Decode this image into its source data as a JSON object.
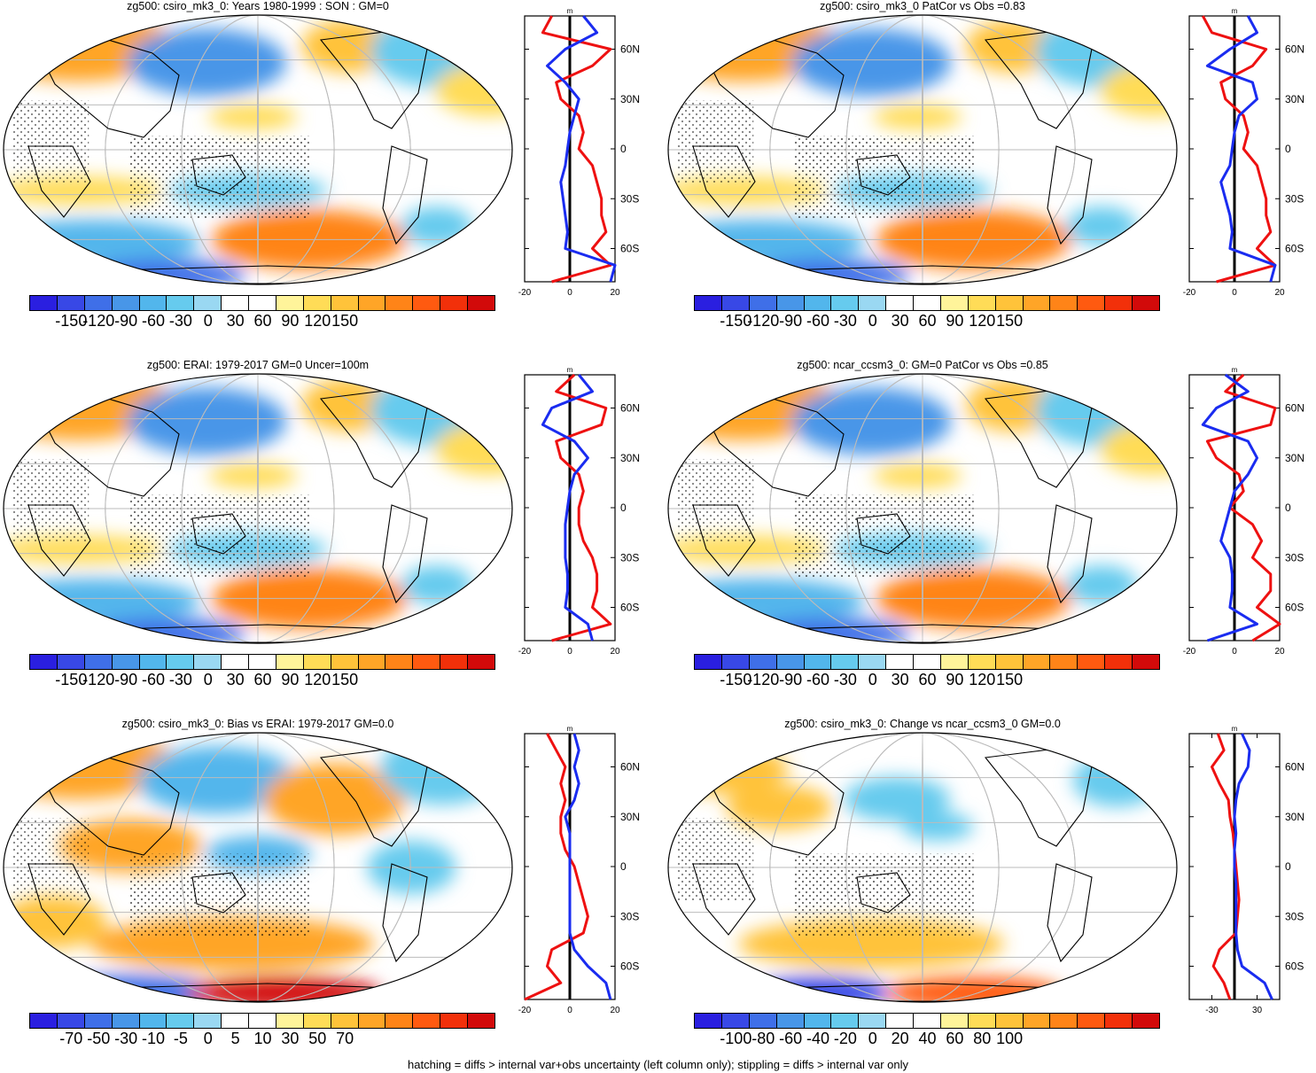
{
  "panels": [
    {
      "title": "zg500: csiro_mk3_0: Years 1980-1999 : SON : GM=0",
      "colorbar_labels": [
        "-150",
        "-120",
        "-90",
        "-60",
        "-30",
        "0",
        "30",
        "60",
        "90",
        "120",
        "150"
      ],
      "profile_xticks": [
        "-20",
        "0",
        "20"
      ],
      "profile_yticks": [
        "60N",
        "30N",
        "0",
        "30S",
        "60S"
      ],
      "profile_units": "m"
    },
    {
      "title": "zg500: csiro_mk3_0 PatCor vs Obs =0.83",
      "colorbar_labels": [
        "-150",
        "-120",
        "-90",
        "-60",
        "-30",
        "0",
        "30",
        "60",
        "90",
        "120",
        "150"
      ],
      "profile_xticks": [
        "-20",
        "0",
        "20"
      ],
      "profile_yticks": [
        "60N",
        "30N",
        "0",
        "30S",
        "60S"
      ],
      "profile_units": "m"
    },
    {
      "title": "zg500: ERAI: 1979-2017 GM=0 Uncer=100m",
      "colorbar_labels": [
        "-150",
        "-120",
        "-90",
        "-60",
        "-30",
        "0",
        "30",
        "60",
        "90",
        "120",
        "150"
      ],
      "profile_xticks": [
        "-20",
        "0",
        "20"
      ],
      "profile_yticks": [
        "60N",
        "30N",
        "0",
        "30S",
        "60S"
      ],
      "profile_units": "m"
    },
    {
      "title": "zg500: ncar_ccsm3_0: GM=0 PatCor vs Obs =0.85",
      "colorbar_labels": [
        "-150",
        "-120",
        "-90",
        "-60",
        "-30",
        "0",
        "30",
        "60",
        "90",
        "120",
        "150"
      ],
      "profile_xticks": [
        "-20",
        "0",
        "20"
      ],
      "profile_yticks": [
        "60N",
        "30N",
        "0",
        "30S",
        "60S"
      ],
      "profile_units": "m"
    },
    {
      "title": "zg500: csiro_mk3_0: Bias vs ERAI: 1979-2017  GM=0.0",
      "colorbar_labels": [
        "-70",
        "-50",
        "-30",
        "-10",
        "-5",
        "0",
        "5",
        "10",
        "30",
        "50",
        "70"
      ],
      "profile_xticks": [
        "-20",
        "0",
        "20"
      ],
      "profile_yticks": [
        "60N",
        "30N",
        "0",
        "30S",
        "60S"
      ],
      "profile_units": "m"
    },
    {
      "title": "zg500: csiro_mk3_0: Change vs ncar_ccsm3_0 GM=0.0",
      "colorbar_labels": [
        "-100",
        "-80",
        "-60",
        "-40",
        "-20",
        "0",
        "20",
        "40",
        "60",
        "80",
        "100"
      ],
      "profile_xticks": [
        "-30",
        "30"
      ],
      "profile_yticks": [
        "60N",
        "30N",
        "0",
        "30S",
        "60S"
      ],
      "profile_units": "m"
    }
  ],
  "colors": {
    "palette": [
      "#2a1fe0",
      "#3848e6",
      "#3f6fe8",
      "#4896e8",
      "#52b6ec",
      "#66cbee",
      "#9ad8f2",
      "#ffffff",
      "#ffffff",
      "#fff49a",
      "#ffdc57",
      "#ffc33a",
      "#ffa527",
      "#ff8418",
      "#ff5a10",
      "#f2300a",
      "#d20a0a"
    ],
    "profile_red": "#ee1111",
    "profile_blue": "#1a2cf0",
    "map_blue": "#4aa6ea",
    "map_orange": "#ffb437",
    "gridline": "#bbbbbb"
  },
  "footer": "hatching = diffs > internal var+obs uncertainty (left column only); stippling = diffs > internal var only",
  "chart_data": [
    {
      "type": "heatmap",
      "title": "zg500: csiro_mk3_0: Years 1980-1999 : SON : GM=0",
      "colorbar_range": [
        -150,
        150
      ],
      "zonal_profile": {
        "xlim": [
          -20,
          20
        ],
        "lat": [
          80,
          70,
          60,
          50,
          40,
          30,
          20,
          10,
          0,
          -10,
          -20,
          -30,
          -40,
          -50,
          -60,
          -70,
          -80
        ],
        "series": [
          {
            "name": "red",
            "values": [
              -8,
              -12,
              18,
              10,
              -6,
              -4,
              4,
              6,
              4,
              10,
              12,
              14,
              14,
              16,
              10,
              18,
              -8
            ]
          },
          {
            "name": "blue",
            "values": [
              6,
              12,
              -2,
              -10,
              -2,
              4,
              2,
              0,
              -1,
              -2,
              -4,
              -3,
              -2,
              -1,
              -2,
              20,
              18
            ]
          }
        ]
      }
    },
    {
      "type": "heatmap",
      "title": "zg500: csiro_mk3_0 PatCor vs Obs =0.83",
      "colorbar_range": [
        -150,
        150
      ],
      "zonal_profile": {
        "xlim": [
          -20,
          20
        ],
        "lat": [
          80,
          70,
          60,
          50,
          40,
          30,
          20,
          10,
          0,
          -10,
          -20,
          -30,
          -40,
          -50,
          -60,
          -70,
          -80
        ],
        "series": [
          {
            "name": "red",
            "values": [
              -14,
              -10,
              14,
              8,
              -6,
              -4,
              4,
              6,
              4,
              10,
              12,
              14,
              14,
              16,
              10,
              18,
              -8
            ]
          },
          {
            "name": "blue",
            "values": [
              6,
              10,
              -2,
              -12,
              8,
              10,
              2,
              0,
              -1,
              -2,
              -6,
              -4,
              -2,
              -1,
              -2,
              18,
              16
            ]
          }
        ]
      }
    },
    {
      "type": "heatmap",
      "title": "zg500: ERAI: 1979-2017 GM=0 Uncer=100m",
      "colorbar_range": [
        -150,
        150
      ],
      "zonal_profile": {
        "xlim": [
          -20,
          20
        ],
        "lat": [
          80,
          70,
          60,
          50,
          40,
          30,
          20,
          10,
          0,
          -10,
          -20,
          -30,
          -40,
          -50,
          -60,
          -70,
          -80
        ],
        "series": [
          {
            "name": "red",
            "values": [
              2,
              -6,
              16,
              14,
              -6,
              -4,
              4,
              6,
              4,
              4,
              6,
              10,
              12,
              12,
              10,
              18,
              -8
            ]
          },
          {
            "name": "blue",
            "values": [
              4,
              10,
              -8,
              -12,
              2,
              8,
              2,
              0,
              -1,
              -2,
              -2,
              -2,
              -1,
              -1,
              -2,
              8,
              10
            ]
          }
        ]
      }
    },
    {
      "type": "heatmap",
      "title": "zg500: ncar_ccsm3_0: GM=0 PatCor vs Obs =0.85",
      "colorbar_range": [
        -150,
        150
      ],
      "zonal_profile": {
        "xlim": [
          -20,
          20
        ],
        "lat": [
          80,
          70,
          60,
          50,
          40,
          30,
          20,
          10,
          0,
          -10,
          -20,
          -30,
          -40,
          -50,
          -60,
          -70,
          -80
        ],
        "series": [
          {
            "name": "red",
            "values": [
              4,
              -4,
              18,
              16,
              -12,
              -8,
              2,
              4,
              -2,
              8,
              12,
              8,
              16,
              16,
              10,
              20,
              8
            ]
          },
          {
            "name": "blue",
            "values": [
              -4,
              6,
              -8,
              -14,
              6,
              10,
              6,
              0,
              -2,
              -4,
              -6,
              -2,
              -1,
              -1,
              -2,
              10,
              -12
            ]
          }
        ]
      }
    },
    {
      "type": "heatmap",
      "title": "zg500: csiro_mk3_0: Bias vs ERAI: 1979-2017  GM=0.0",
      "colorbar_range": [
        -70,
        70
      ],
      "zonal_profile": {
        "xlim": [
          -20,
          20
        ],
        "lat": [
          80,
          70,
          60,
          50,
          40,
          30,
          20,
          10,
          0,
          -10,
          -20,
          -30,
          -40,
          -50,
          -60,
          -70,
          -80
        ],
        "series": [
          {
            "name": "red",
            "values": [
              -10,
              -6,
              -2,
              -4,
              -2,
              -4,
              -4,
              -2,
              2,
              4,
              6,
              8,
              6,
              -8,
              -10,
              -4,
              -20
            ]
          },
          {
            "name": "blue",
            "values": [
              2,
              4,
              2,
              4,
              2,
              -2,
              0,
              0,
              0,
              0,
              0,
              0,
              0,
              2,
              8,
              16,
              18
            ]
          }
        ]
      }
    },
    {
      "type": "heatmap",
      "title": "zg500: csiro_mk3_0: Change vs ncar_ccsm3_0 GM=0.0",
      "colorbar_range": [
        -100,
        100
      ],
      "zonal_profile": {
        "xlim": [
          -60,
          60
        ],
        "lat": [
          80,
          70,
          60,
          50,
          40,
          30,
          20,
          10,
          0,
          -10,
          -20,
          -30,
          -40,
          -50,
          -60,
          -70,
          -80
        ],
        "series": [
          {
            "name": "red",
            "values": [
              -22,
              -14,
              -30,
              -20,
              -8,
              -6,
              -2,
              0,
              2,
              4,
              6,
              4,
              2,
              -20,
              -28,
              -14,
              -6
            ]
          },
          {
            "name": "blue",
            "values": [
              10,
              20,
              18,
              6,
              2,
              0,
              2,
              0,
              0,
              2,
              2,
              2,
              2,
              4,
              10,
              40,
              50
            ]
          }
        ]
      }
    }
  ]
}
